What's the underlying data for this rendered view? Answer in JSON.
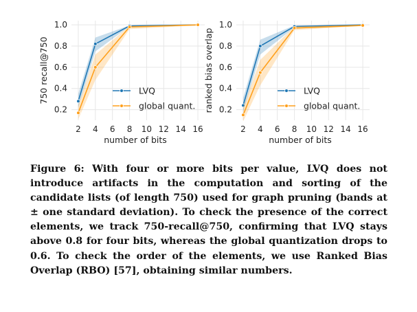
{
  "chart_data": [
    {
      "type": "line",
      "title": "",
      "xlabel": "number of bits",
      "ylabel": "750 recall@750",
      "x": [
        2,
        4,
        8,
        16
      ],
      "xticks": [
        "2",
        "4",
        "6",
        "8",
        "10",
        "12",
        "14",
        "16"
      ],
      "yticks": [
        "0.2",
        "0.4",
        "0.6",
        "0.8",
        "1.0"
      ],
      "xlim": [
        1.2,
        16.8
      ],
      "ylim": [
        0.1,
        1.04
      ],
      "grid": true,
      "legend_position": "lower-right",
      "series": [
        {
          "name": "LVQ",
          "color": "#1f77b4",
          "values": [
            0.28,
            0.82,
            0.99,
            1.0
          ],
          "band_low": [
            0.22,
            0.75,
            0.985,
            0.998
          ],
          "band_high": [
            0.35,
            0.88,
            0.995,
            1.0
          ]
        },
        {
          "name": "global quant.",
          "color": "#ff9f1a",
          "values": [
            0.17,
            0.6,
            0.98,
            1.0
          ],
          "band_low": [
            0.11,
            0.48,
            0.96,
            0.995
          ],
          "band_high": [
            0.24,
            0.72,
            0.99,
            1.0
          ]
        }
      ]
    },
    {
      "type": "line",
      "title": "",
      "xlabel": "number of bits",
      "ylabel": "ranked bias overlap",
      "x": [
        2,
        4,
        8,
        16
      ],
      "xticks": [
        "2",
        "4",
        "6",
        "8",
        "10",
        "12",
        "14",
        "16"
      ],
      "yticks": [
        "0.2",
        "0.4",
        "0.6",
        "0.8",
        "1.0"
      ],
      "xlim": [
        1.2,
        16.8
      ],
      "ylim": [
        0.1,
        1.04
      ],
      "grid": true,
      "legend_position": "lower-right",
      "series": [
        {
          "name": "LVQ",
          "color": "#1f77b4",
          "values": [
            0.24,
            0.8,
            0.985,
            1.0
          ],
          "band_low": [
            0.18,
            0.72,
            0.975,
            0.995
          ],
          "band_high": [
            0.31,
            0.86,
            0.995,
            1.0
          ]
        },
        {
          "name": "global quant.",
          "color": "#ff9f1a",
          "values": [
            0.15,
            0.55,
            0.97,
            0.995
          ],
          "band_low": [
            0.09,
            0.43,
            0.95,
            0.99
          ],
          "band_high": [
            0.22,
            0.67,
            0.985,
            1.0
          ]
        }
      ]
    }
  ],
  "caption": "Figure 6: With four or more bits per value, LVQ does not introduce artifacts in the computation and sorting of the candidate lists (of length 750) used for graph pruning (bands at ± one standard deviation). To check the presence of the correct elements, we track 750-recall@750, confirming that LVQ stays above 0.8 for four bits, whereas the global quantization drops to 0.6. To check the order of the elements, we use Ranked Bias Overlap (RBO) [57], obtaining similar numbers."
}
